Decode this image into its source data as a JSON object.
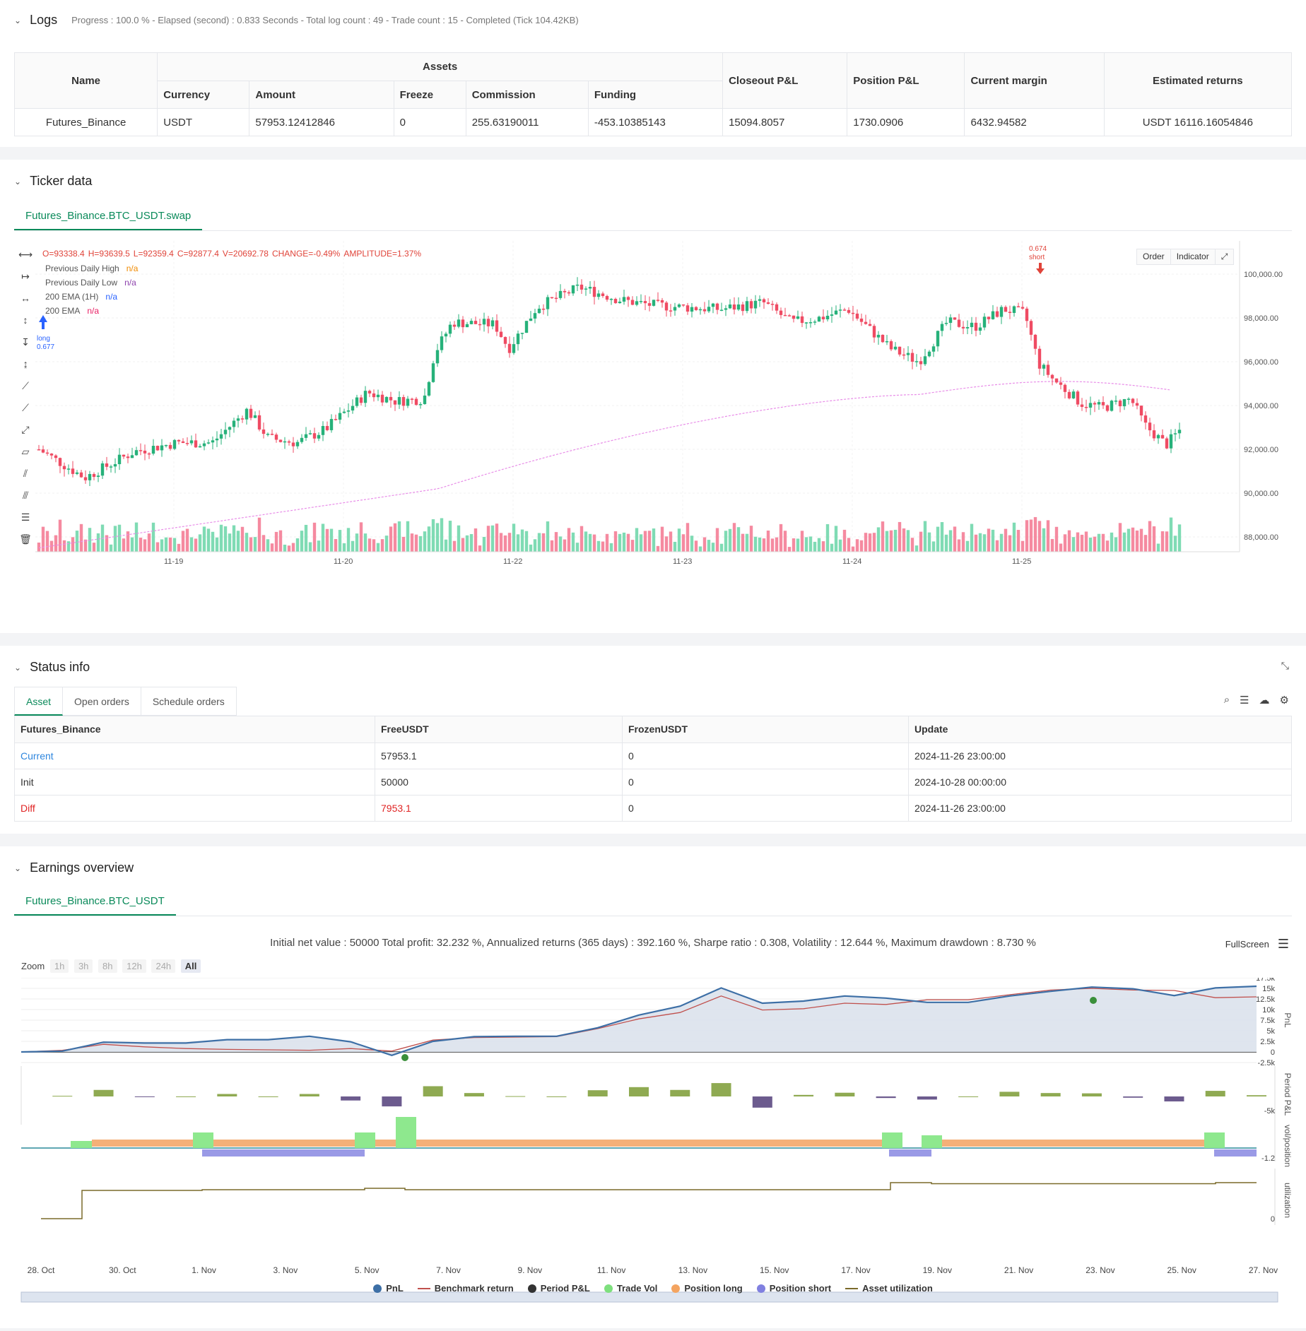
{
  "logs": {
    "title": "Logs",
    "summary": "Progress : 100.0 % - Elapsed (second) : 0.833  Seconds - Total log count : 49 - Trade count : 15 - Completed (Tick 104.42KB)",
    "headers": {
      "name": "Name",
      "assets": "Assets",
      "currency": "Currency",
      "amount": "Amount",
      "freeze": "Freeze",
      "commission": "Commission",
      "funding": "Funding",
      "closeout": "Closeout P&L",
      "position": "Position P&L",
      "margin": "Current margin",
      "returns": "Estimated returns"
    },
    "row": {
      "name": "Futures_Binance",
      "currency": "USDT",
      "amount": "57953.12412846",
      "freeze": "0",
      "commission": "255.63190011",
      "funding": "-453.10385143",
      "closeout": "15094.8057",
      "position": "1730.0906",
      "margin": "6432.94582",
      "returns": "USDT 16116.16054846"
    }
  },
  "ticker": {
    "title": "Ticker data",
    "tab": "Futures_Binance.BTC_USDT.swap",
    "ohlc": {
      "o": "O=93338.4",
      "h": "H=93639.5",
      "l": "L=92359.4",
      "c": "C=92877.4",
      "v": "V=20692.78",
      "change": "CHANGE=-0.49%",
      "amp": "AMPLITUDE=1.37%"
    },
    "indicators": [
      {
        "label": "Previous Daily High",
        "value": "n/a",
        "color": "#f08a00"
      },
      {
        "label": "Previous Daily Low",
        "value": "n/a",
        "color": "#8e44ad"
      },
      {
        "label": "200 EMA (1H)",
        "value": "n/a",
        "color": "#2962ff"
      },
      {
        "label": "200 EMA",
        "value": "n/a",
        "color": "#e91e63"
      }
    ],
    "buttons": {
      "order": "Order",
      "indicator": "Indicator"
    },
    "price_ticks": [
      "100,000.00",
      "98,000.00",
      "96,000.00",
      "94,000.00",
      "92,000.00",
      "90,000.00",
      "88,000.00"
    ],
    "date_ticks": [
      "11-19",
      "11-20",
      "11-22",
      "11-23",
      "11-24",
      "11-25"
    ],
    "long_marker": {
      "label": "long",
      "value": "0.677"
    },
    "short_marker": {
      "label": "short",
      "value": "0.674"
    }
  },
  "status": {
    "title": "Status info",
    "tabs": [
      "Asset",
      "Open orders",
      "Schedule orders"
    ],
    "headers": [
      "Futures_Binance",
      "FreeUSDT",
      "FrozenUSDT",
      "Update"
    ],
    "rows": [
      {
        "label": "Current",
        "free": "57953.1",
        "frozen": "0",
        "update": "2024-11-26 23:00:00",
        "color": "#2e86de"
      },
      {
        "label": "Init",
        "free": "50000",
        "frozen": "0",
        "update": "2024-10-28 00:00:00",
        "color": "#333333"
      },
      {
        "label": "Diff",
        "free": "7953.1",
        "frozen": "0",
        "update": "2024-11-26 23:00:00",
        "color": "#e02424"
      }
    ]
  },
  "earnings": {
    "title": "Earnings overview",
    "tab": "Futures_Binance.BTC_USDT",
    "summary": "Initial net value : 50000  Total profit: 32.232 %, Annualized returns (365 days) : 392.160 %, Sharpe ratio : 0.308, Volatility : 12.644 %, Maximum drawdown : 8.730 %",
    "fullscreen": "FullScreen",
    "zoom_label": "Zoom",
    "zoom_buttons": [
      "1h",
      "3h",
      "8h",
      "12h",
      "24h",
      "All"
    ],
    "pnl_ticks": [
      "17.5k",
      "15k",
      "12.5k",
      "10k",
      "7.5k",
      "5k",
      "2.5k",
      "0",
      "-2.5k"
    ],
    "period_tick": "-5k",
    "vol_tick": "-1.2",
    "util_tick": "0",
    "axis_titles": [
      "PnL",
      "Period P&L",
      "vol/position",
      "utilization"
    ],
    "date_ticks": [
      "28. Oct",
      "30. Oct",
      "1. Nov",
      "3. Nov",
      "5. Nov",
      "7. Nov",
      "9. Nov",
      "11. Nov",
      "13. Nov",
      "15. Nov",
      "17. Nov",
      "19. Nov",
      "21. Nov",
      "23. Nov",
      "25. Nov",
      "27. Nov"
    ],
    "legend": [
      {
        "label": "PnL",
        "color": "#3d6fa6",
        "kind": "dot"
      },
      {
        "label": "Benchmark return",
        "color": "#c0504d",
        "kind": "line"
      },
      {
        "label": "Period P&L",
        "color": "#333333",
        "kind": "dot"
      },
      {
        "label": "Trade Vol",
        "color": "#7ee07e",
        "kind": "dot"
      },
      {
        "label": "Position long",
        "color": "#f4a460",
        "kind": "dot"
      },
      {
        "label": "Position short",
        "color": "#8080e0",
        "kind": "dot"
      },
      {
        "label": "Asset utilization",
        "color": "#7a6a2a",
        "kind": "line"
      }
    ]
  },
  "chart_data": [
    {
      "type": "line",
      "title": "",
      "xlabel": "",
      "ylabel": "PnL",
      "x": [
        "28. Oct",
        "29. Oct",
        "30. Oct",
        "31. Oct",
        "1. Nov",
        "2. Nov",
        "3. Nov",
        "4. Nov",
        "5. Nov",
        "6. Nov",
        "7. Nov",
        "8. Nov",
        "9. Nov",
        "10. Nov",
        "11. Nov",
        "12. Nov",
        "13. Nov",
        "14. Nov",
        "15. Nov",
        "16. Nov",
        "17. Nov",
        "18. Nov",
        "19. Nov",
        "20. Nov",
        "21. Nov",
        "22. Nov",
        "23. Nov",
        "24. Nov",
        "25. Nov",
        "26. Nov",
        "27. Nov"
      ],
      "series": [
        {
          "name": "PnL",
          "values": [
            0,
            200,
            2300,
            2100,
            2100,
            2900,
            2900,
            3700,
            2400,
            -800,
            2500,
            3600,
            3700,
            3700,
            5700,
            8700,
            10800,
            15100,
            11500,
            12000,
            13200,
            12700,
            11700,
            11700,
            13200,
            14300,
            15300,
            14900,
            13300,
            15100,
            15500
          ]
        },
        {
          "name": "Benchmark return",
          "values": [
            0,
            400,
            1800,
            1200,
            800,
            600,
            500,
            400,
            800,
            200,
            2800,
            3400,
            3500,
            3600,
            5500,
            7800,
            9300,
            13200,
            9900,
            10200,
            11500,
            11200,
            12300,
            12300,
            13500,
            14600,
            15000,
            14600,
            14500,
            12800,
            13000
          ]
        }
      ],
      "ylim": [
        -2500,
        17500
      ]
    }
  ]
}
